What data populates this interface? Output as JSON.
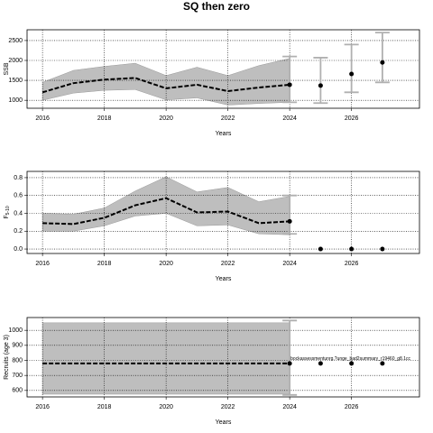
{
  "chart_data": [
    {
      "type": "line",
      "title": "SQ then zero",
      "xlabel": "Years",
      "ylabel": "SSB",
      "x": [
        2016,
        2017,
        2018,
        2019,
        2020,
        2021,
        2022,
        2023,
        2024
      ],
      "values": [
        1200,
        1430,
        1520,
        1560,
        1300,
        1390,
        1230,
        1320,
        1390
      ],
      "band_upper": [
        1450,
        1750,
        1850,
        1930,
        1620,
        1830,
        1620,
        1870,
        2050
      ],
      "band_lower": [
        1000,
        1180,
        1250,
        1270,
        1010,
        1060,
        880,
        920,
        950
      ],
      "proj_x": [
        2025,
        2026,
        2027
      ],
      "proj_values": [
        1370,
        1660,
        1950
      ],
      "err_x": [
        2024,
        2025,
        2026,
        2027
      ],
      "err_lower": [
        950,
        930,
        1200,
        1450
      ],
      "err_upper": [
        2100,
        2070,
        2400,
        2700
      ],
      "xlim": [
        2015.5,
        2028.2
      ],
      "ylim": [
        800,
        2770
      ],
      "xticks": [
        2016,
        2018,
        2020,
        2022,
        2024,
        2026
      ],
      "yticks": [
        1000,
        1500,
        2000,
        2500
      ],
      "grid": true
    },
    {
      "type": "line",
      "xlabel": "Years",
      "ylabel": "F",
      "ylabel_sub": "5-10",
      "x": [
        2016,
        2017,
        2018,
        2019,
        2020,
        2021,
        2022,
        2023,
        2024
      ],
      "values": [
        0.29,
        0.28,
        0.35,
        0.49,
        0.57,
        0.41,
        0.42,
        0.29,
        0.31
      ],
      "band_upper": [
        0.4,
        0.39,
        0.46,
        0.65,
        0.81,
        0.64,
        0.69,
        0.53,
        0.59
      ],
      "band_lower": [
        0.2,
        0.2,
        0.26,
        0.37,
        0.4,
        0.26,
        0.27,
        0.17,
        0.16
      ],
      "proj_x": [
        2025,
        2026,
        2027
      ],
      "proj_values": [
        0,
        0,
        0
      ],
      "err_x": [
        2024
      ],
      "err_lower": [
        0.17
      ],
      "err_upper": [
        0.6
      ],
      "xlim": [
        2015.5,
        2028.2
      ],
      "ylim": [
        -0.05,
        0.87
      ],
      "xticks": [
        2016,
        2018,
        2020,
        2022,
        2024,
        2026
      ],
      "yticks": [
        {
          "value": 0,
          "label": "0.0"
        },
        0.2,
        0.4,
        0.6,
        0.8
      ],
      "grid": true
    },
    {
      "type": "line",
      "xlabel": "Years",
      "ylabel": "Recruits (age 3)",
      "x": [
        2016,
        2017,
        2018,
        2019,
        2020,
        2021,
        2022,
        2023,
        2024
      ],
      "values": [
        780,
        780,
        780,
        780,
        780,
        780,
        780,
        780,
        780
      ],
      "band_upper": [
        1050,
        1050,
        1050,
        1050,
        1050,
        1050,
        1050,
        1050,
        1050
      ],
      "band_lower": [
        575,
        575,
        575,
        575,
        575,
        575,
        575,
        575,
        575
      ],
      "proj_x": [
        2025,
        2026,
        2027
      ],
      "proj_values": [
        780,
        780,
        780
      ],
      "err_x": [
        2024
      ],
      "err_lower": [
        570
      ],
      "err_upper": [
        1065
      ],
      "annotation": "bockassessmentunrg.?unge_bad2summary_r19460_g8.1cc",
      "xlim": [
        2015.5,
        2028.2
      ],
      "ylim": [
        557,
        1085
      ],
      "xticks": [
        2016,
        2018,
        2020,
        2022,
        2024,
        2026
      ],
      "yticks": [
        600,
        700,
        800,
        900,
        1000
      ],
      "grid": true
    }
  ]
}
